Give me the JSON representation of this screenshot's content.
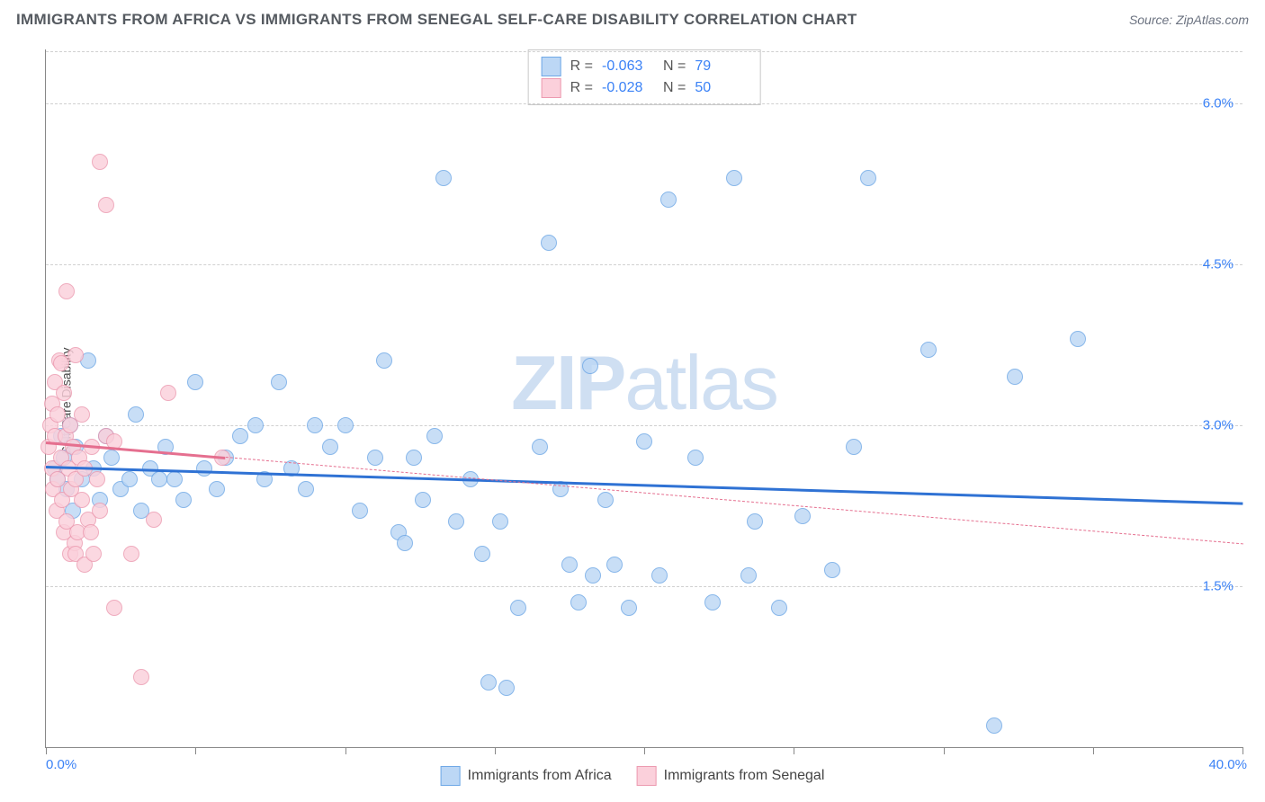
{
  "title": "IMMIGRANTS FROM AFRICA VS IMMIGRANTS FROM SENEGAL SELF-CARE DISABILITY CORRELATION CHART",
  "source": "Source: ZipAtlas.com",
  "ylabel": "Self-Care Disability",
  "watermark_bold": "ZIP",
  "watermark_rest": "atlas",
  "chart": {
    "xlim": [
      0,
      40
    ],
    "ylim": [
      0,
      6.5
    ],
    "yticks": [
      1.5,
      3.0,
      4.5,
      6.0
    ],
    "ytick_labels": [
      "1.5%",
      "3.0%",
      "4.5%",
      "6.0%"
    ],
    "xticks": [
      0,
      5,
      10,
      15,
      20,
      25,
      30,
      35,
      40
    ],
    "xlim_labels": [
      "0.0%",
      "40.0%"
    ],
    "background": "#ffffff",
    "grid_color": "#d0d0d0",
    "axis_color": "#888888",
    "point_radius": 9,
    "series": [
      {
        "key": "africa",
        "label": "Immigrants from Africa",
        "fill": "#bcd7f5",
        "stroke": "#6fa8e6",
        "trend_color": "#2f72d4",
        "R": "-0.063",
        "N": "79",
        "trend": {
          "y_at_x0": 2.62,
          "y_at_x40": 2.28,
          "solid_from_x": 0,
          "solid_to_x": 40
        },
        "points": [
          [
            0.3,
            2.6
          ],
          [
            0.4,
            2.5
          ],
          [
            0.5,
            2.9
          ],
          [
            0.6,
            2.7
          ],
          [
            0.7,
            2.4
          ],
          [
            0.8,
            3.0
          ],
          [
            0.9,
            2.2
          ],
          [
            1.0,
            2.8
          ],
          [
            1.2,
            2.5
          ],
          [
            1.4,
            3.6
          ],
          [
            1.6,
            2.6
          ],
          [
            1.8,
            2.3
          ],
          [
            2.0,
            2.9
          ],
          [
            2.2,
            2.7
          ],
          [
            2.5,
            2.4
          ],
          [
            2.8,
            2.5
          ],
          [
            3.0,
            3.1
          ],
          [
            3.2,
            2.2
          ],
          [
            3.5,
            2.6
          ],
          [
            3.8,
            2.5
          ],
          [
            4.0,
            2.8
          ],
          [
            4.3,
            2.5
          ],
          [
            4.6,
            2.3
          ],
          [
            5.0,
            3.4
          ],
          [
            5.3,
            2.6
          ],
          [
            5.7,
            2.4
          ],
          [
            6.0,
            2.7
          ],
          [
            6.5,
            2.9
          ],
          [
            7.0,
            3.0
          ],
          [
            7.3,
            2.5
          ],
          [
            7.8,
            3.4
          ],
          [
            8.2,
            2.6
          ],
          [
            8.7,
            2.4
          ],
          [
            9.0,
            3.0
          ],
          [
            9.5,
            2.8
          ],
          [
            10.0,
            3.0
          ],
          [
            10.5,
            2.2
          ],
          [
            11.0,
            2.7
          ],
          [
            11.3,
            3.6
          ],
          [
            11.8,
            2.0
          ],
          [
            12.0,
            1.9
          ],
          [
            12.3,
            2.7
          ],
          [
            12.6,
            2.3
          ],
          [
            13.0,
            2.9
          ],
          [
            13.3,
            5.3
          ],
          [
            13.7,
            2.1
          ],
          [
            14.2,
            2.5
          ],
          [
            14.6,
            1.8
          ],
          [
            14.8,
            0.6
          ],
          [
            15.2,
            2.1
          ],
          [
            15.4,
            0.55
          ],
          [
            15.8,
            1.3
          ],
          [
            16.5,
            2.8
          ],
          [
            16.8,
            4.7
          ],
          [
            17.2,
            2.4
          ],
          [
            17.5,
            1.7
          ],
          [
            17.8,
            1.35
          ],
          [
            18.2,
            3.55
          ],
          [
            18.3,
            1.6
          ],
          [
            18.7,
            2.3
          ],
          [
            19.0,
            1.7
          ],
          [
            19.5,
            1.3
          ],
          [
            20.0,
            2.85
          ],
          [
            20.5,
            1.6
          ],
          [
            20.8,
            5.1
          ],
          [
            21.7,
            2.7
          ],
          [
            22.3,
            1.35
          ],
          [
            23.0,
            5.3
          ],
          [
            23.5,
            1.6
          ],
          [
            23.7,
            2.1
          ],
          [
            24.5,
            1.3
          ],
          [
            25.3,
            2.15
          ],
          [
            26.3,
            1.65
          ],
          [
            27.0,
            2.8
          ],
          [
            27.5,
            5.3
          ],
          [
            29.5,
            3.7
          ],
          [
            31.7,
            0.2
          ],
          [
            32.4,
            3.45
          ],
          [
            34.5,
            3.8
          ]
        ]
      },
      {
        "key": "senegal",
        "label": "Immigrants from Senegal",
        "fill": "#fbd0db",
        "stroke": "#ec9ab0",
        "trend_color": "#e56f8f",
        "R": "-0.028",
        "N": "50",
        "trend": {
          "y_at_x0": 2.85,
          "y_at_x40": 1.9,
          "solid_from_x": 0,
          "solid_to_x": 6
        },
        "points": [
          [
            0.1,
            2.8
          ],
          [
            0.15,
            3.0
          ],
          [
            0.2,
            2.6
          ],
          [
            0.2,
            3.2
          ],
          [
            0.25,
            2.4
          ],
          [
            0.3,
            3.4
          ],
          [
            0.3,
            2.9
          ],
          [
            0.35,
            2.2
          ],
          [
            0.4,
            3.1
          ],
          [
            0.4,
            2.5
          ],
          [
            0.45,
            3.6
          ],
          [
            0.5,
            2.7
          ],
          [
            0.5,
            3.58
          ],
          [
            0.55,
            2.3
          ],
          [
            0.6,
            2.0
          ],
          [
            0.6,
            3.3
          ],
          [
            0.65,
            2.9
          ],
          [
            0.7,
            2.1
          ],
          [
            0.7,
            4.25
          ],
          [
            0.75,
            2.6
          ],
          [
            0.8,
            3.0
          ],
          [
            0.8,
            1.8
          ],
          [
            0.85,
            2.4
          ],
          [
            0.9,
            2.8
          ],
          [
            0.95,
            1.9
          ],
          [
            1.0,
            2.5
          ],
          [
            1.0,
            3.65
          ],
          [
            1.05,
            2.0
          ],
          [
            1.1,
            2.7
          ],
          [
            1.0,
            1.8
          ],
          [
            1.2,
            2.3
          ],
          [
            1.2,
            3.1
          ],
          [
            1.3,
            2.6
          ],
          [
            1.3,
            1.7
          ],
          [
            1.4,
            2.12
          ],
          [
            1.5,
            2.0
          ],
          [
            1.52,
            2.8
          ],
          [
            1.6,
            1.8
          ],
          [
            1.7,
            2.5
          ],
          [
            1.8,
            5.45
          ],
          [
            1.8,
            2.2
          ],
          [
            2.0,
            5.05
          ],
          [
            2.0,
            2.9
          ],
          [
            2.3,
            1.3
          ],
          [
            2.3,
            2.85
          ],
          [
            2.85,
            1.8
          ],
          [
            3.2,
            0.65
          ],
          [
            3.6,
            2.12
          ],
          [
            4.1,
            3.3
          ],
          [
            5.9,
            2.7
          ]
        ]
      }
    ]
  },
  "stats_labels": {
    "R": "R =",
    "N": "N ="
  },
  "legend": {
    "africa": "Immigrants from Africa",
    "senegal": "Immigrants from Senegal"
  }
}
